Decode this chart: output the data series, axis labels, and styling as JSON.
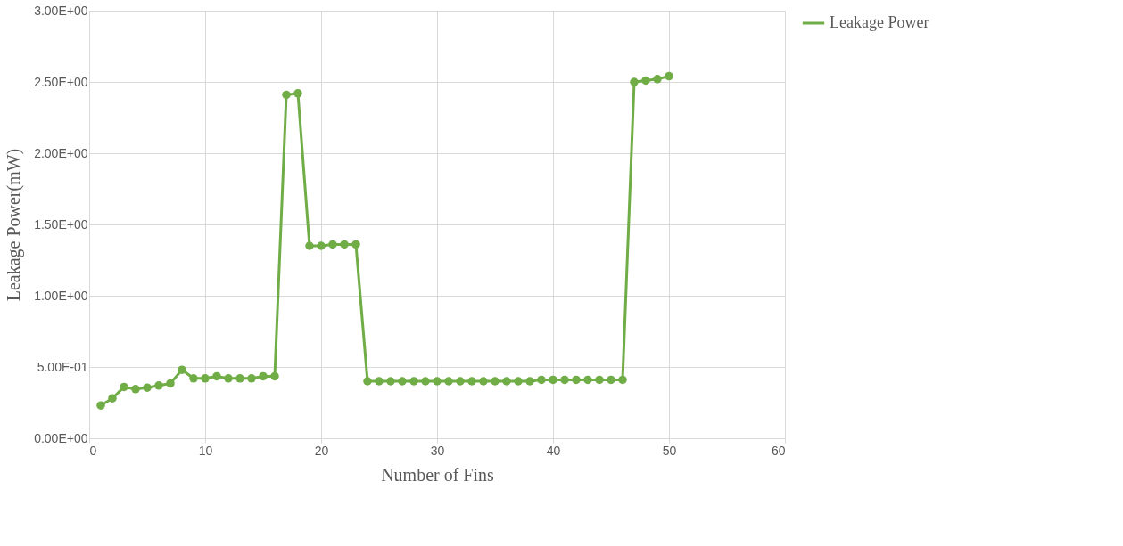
{
  "chart_data": {
    "type": "line",
    "xlabel": "Number of Fins",
    "ylabel": "Leakage Power(mW)",
    "x": [
      1,
      2,
      3,
      4,
      5,
      6,
      7,
      8,
      9,
      10,
      11,
      12,
      13,
      14,
      15,
      16,
      17,
      18,
      19,
      20,
      21,
      22,
      23,
      24,
      25,
      26,
      27,
      28,
      29,
      30,
      31,
      32,
      33,
      34,
      35,
      36,
      37,
      38,
      39,
      40,
      41,
      42,
      43,
      44,
      45,
      46,
      47,
      48,
      49,
      50
    ],
    "series": [
      {
        "name": "Leakage Power",
        "color": "#70ad47",
        "values": [
          0.23,
          0.28,
          0.36,
          0.345,
          0.355,
          0.37,
          0.385,
          0.48,
          0.42,
          0.42,
          0.435,
          0.42,
          0.42,
          0.42,
          0.435,
          0.435,
          2.41,
          2.42,
          1.35,
          1.35,
          1.36,
          1.36,
          1.36,
          0.4,
          0.4,
          0.4,
          0.4,
          0.4,
          0.4,
          0.4,
          0.4,
          0.4,
          0.4,
          0.4,
          0.4,
          0.4,
          0.4,
          0.4,
          0.41,
          0.41,
          0.41,
          0.41,
          0.41,
          0.41,
          0.41,
          0.41,
          2.5,
          2.51,
          2.52,
          2.54
        ]
      }
    ],
    "xlim": [
      0,
      60
    ],
    "xticks": [
      0,
      10,
      20,
      30,
      40,
      50,
      60
    ],
    "ylim": [
      0,
      3
    ],
    "yticks": [
      {
        "value": 0,
        "label": "0.00E+00"
      },
      {
        "value": 0.5,
        "label": "5.00E-01"
      },
      {
        "value": 1,
        "label": "1.00E+00"
      },
      {
        "value": 1.5,
        "label": "1.50E+00"
      },
      {
        "value": 2,
        "label": "2.00E+00"
      },
      {
        "value": 2.5,
        "label": "2.50E+00"
      },
      {
        "value": 3,
        "label": "3.00E+00"
      }
    ],
    "grid": true,
    "legend": "right",
    "marker": "circle",
    "line_style": "solid"
  }
}
